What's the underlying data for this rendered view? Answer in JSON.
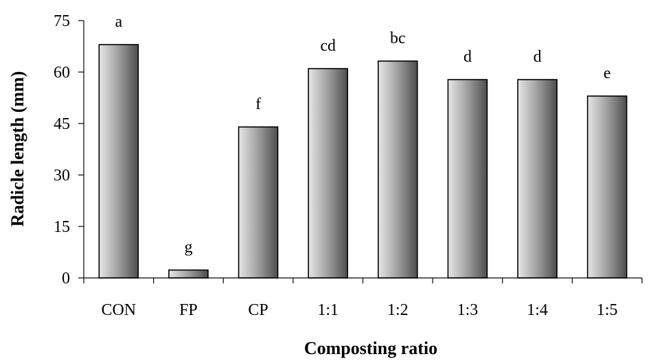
{
  "chart_data": {
    "type": "bar",
    "xlabel": "Composting ratio",
    "ylabel": "Radicle length (mm)",
    "categories": [
      "CON",
      "FP",
      "CP",
      "1:1",
      "1:2",
      "1:3",
      "1:4",
      "1:5"
    ],
    "values": [
      68,
      2.3,
      44,
      61,
      63.2,
      57.8,
      57.8,
      53
    ],
    "labels": [
      "a",
      "g",
      "f",
      "cd",
      "bc",
      "d",
      "d",
      "e"
    ],
    "ylim": [
      0,
      75
    ],
    "yticks": [
      "0",
      "15",
      "30",
      "45",
      "60",
      "75"
    ],
    "grid": false,
    "bar_fill": "gradient-gray",
    "colors": {
      "bar_light": "#e6e6e6",
      "bar_mid": "#a6a6a6",
      "bar_dark": "#4d4d4d",
      "axis": "#000000"
    }
  }
}
